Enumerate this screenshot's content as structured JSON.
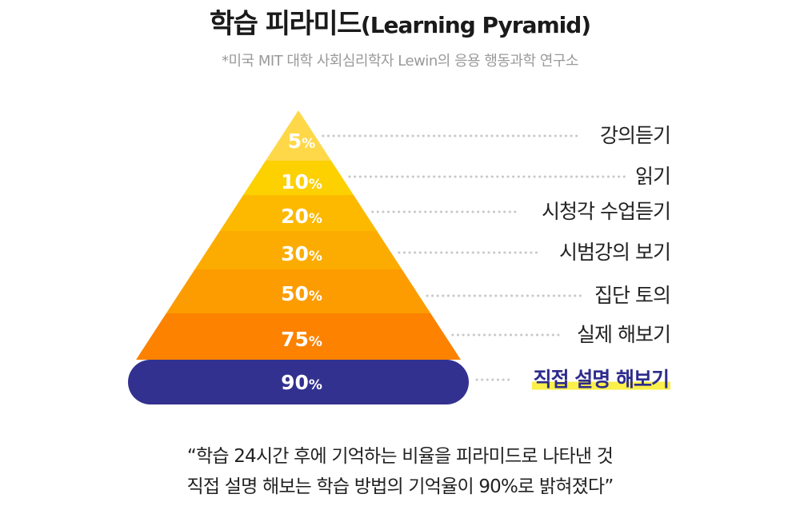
{
  "header": {
    "title_ko": "학습 피라미드",
    "title_en": "(Learning Pyramid)",
    "subtitle": "*미국 MIT 대학 사회심리학자 Lewin의 응용 행동과학 연구소"
  },
  "pyramid": {
    "levels": [
      {
        "percent": "5",
        "label": "강의듣기",
        "color": "#ffd84a",
        "highlight": false
      },
      {
        "percent": "10",
        "label": "읽기",
        "color": "#fdd000",
        "highlight": false
      },
      {
        "percent": "20",
        "label": "시청각 수업듣기",
        "color": "#fcb900",
        "highlight": false
      },
      {
        "percent": "30",
        "label": "시범강의 보기",
        "color": "#fcac00",
        "highlight": false
      },
      {
        "percent": "50",
        "label": "집단 토의",
        "color": "#fc9c00",
        "highlight": false
      },
      {
        "percent": "75",
        "label": "실제 해보기",
        "color": "#fc8200",
        "highlight": false
      },
      {
        "percent": "90",
        "label": "직접 설명 해보기",
        "color": "#33318f",
        "highlight": true
      }
    ],
    "percent_sign": "%"
  },
  "quote": {
    "line1": "“학습 24시간 후에 기억하는 비율을 피라미드로 나타낸 것",
    "line2": "직접 설명 해보는 학습 방법의 기억율이 90%로 밝혀졌다”"
  }
}
